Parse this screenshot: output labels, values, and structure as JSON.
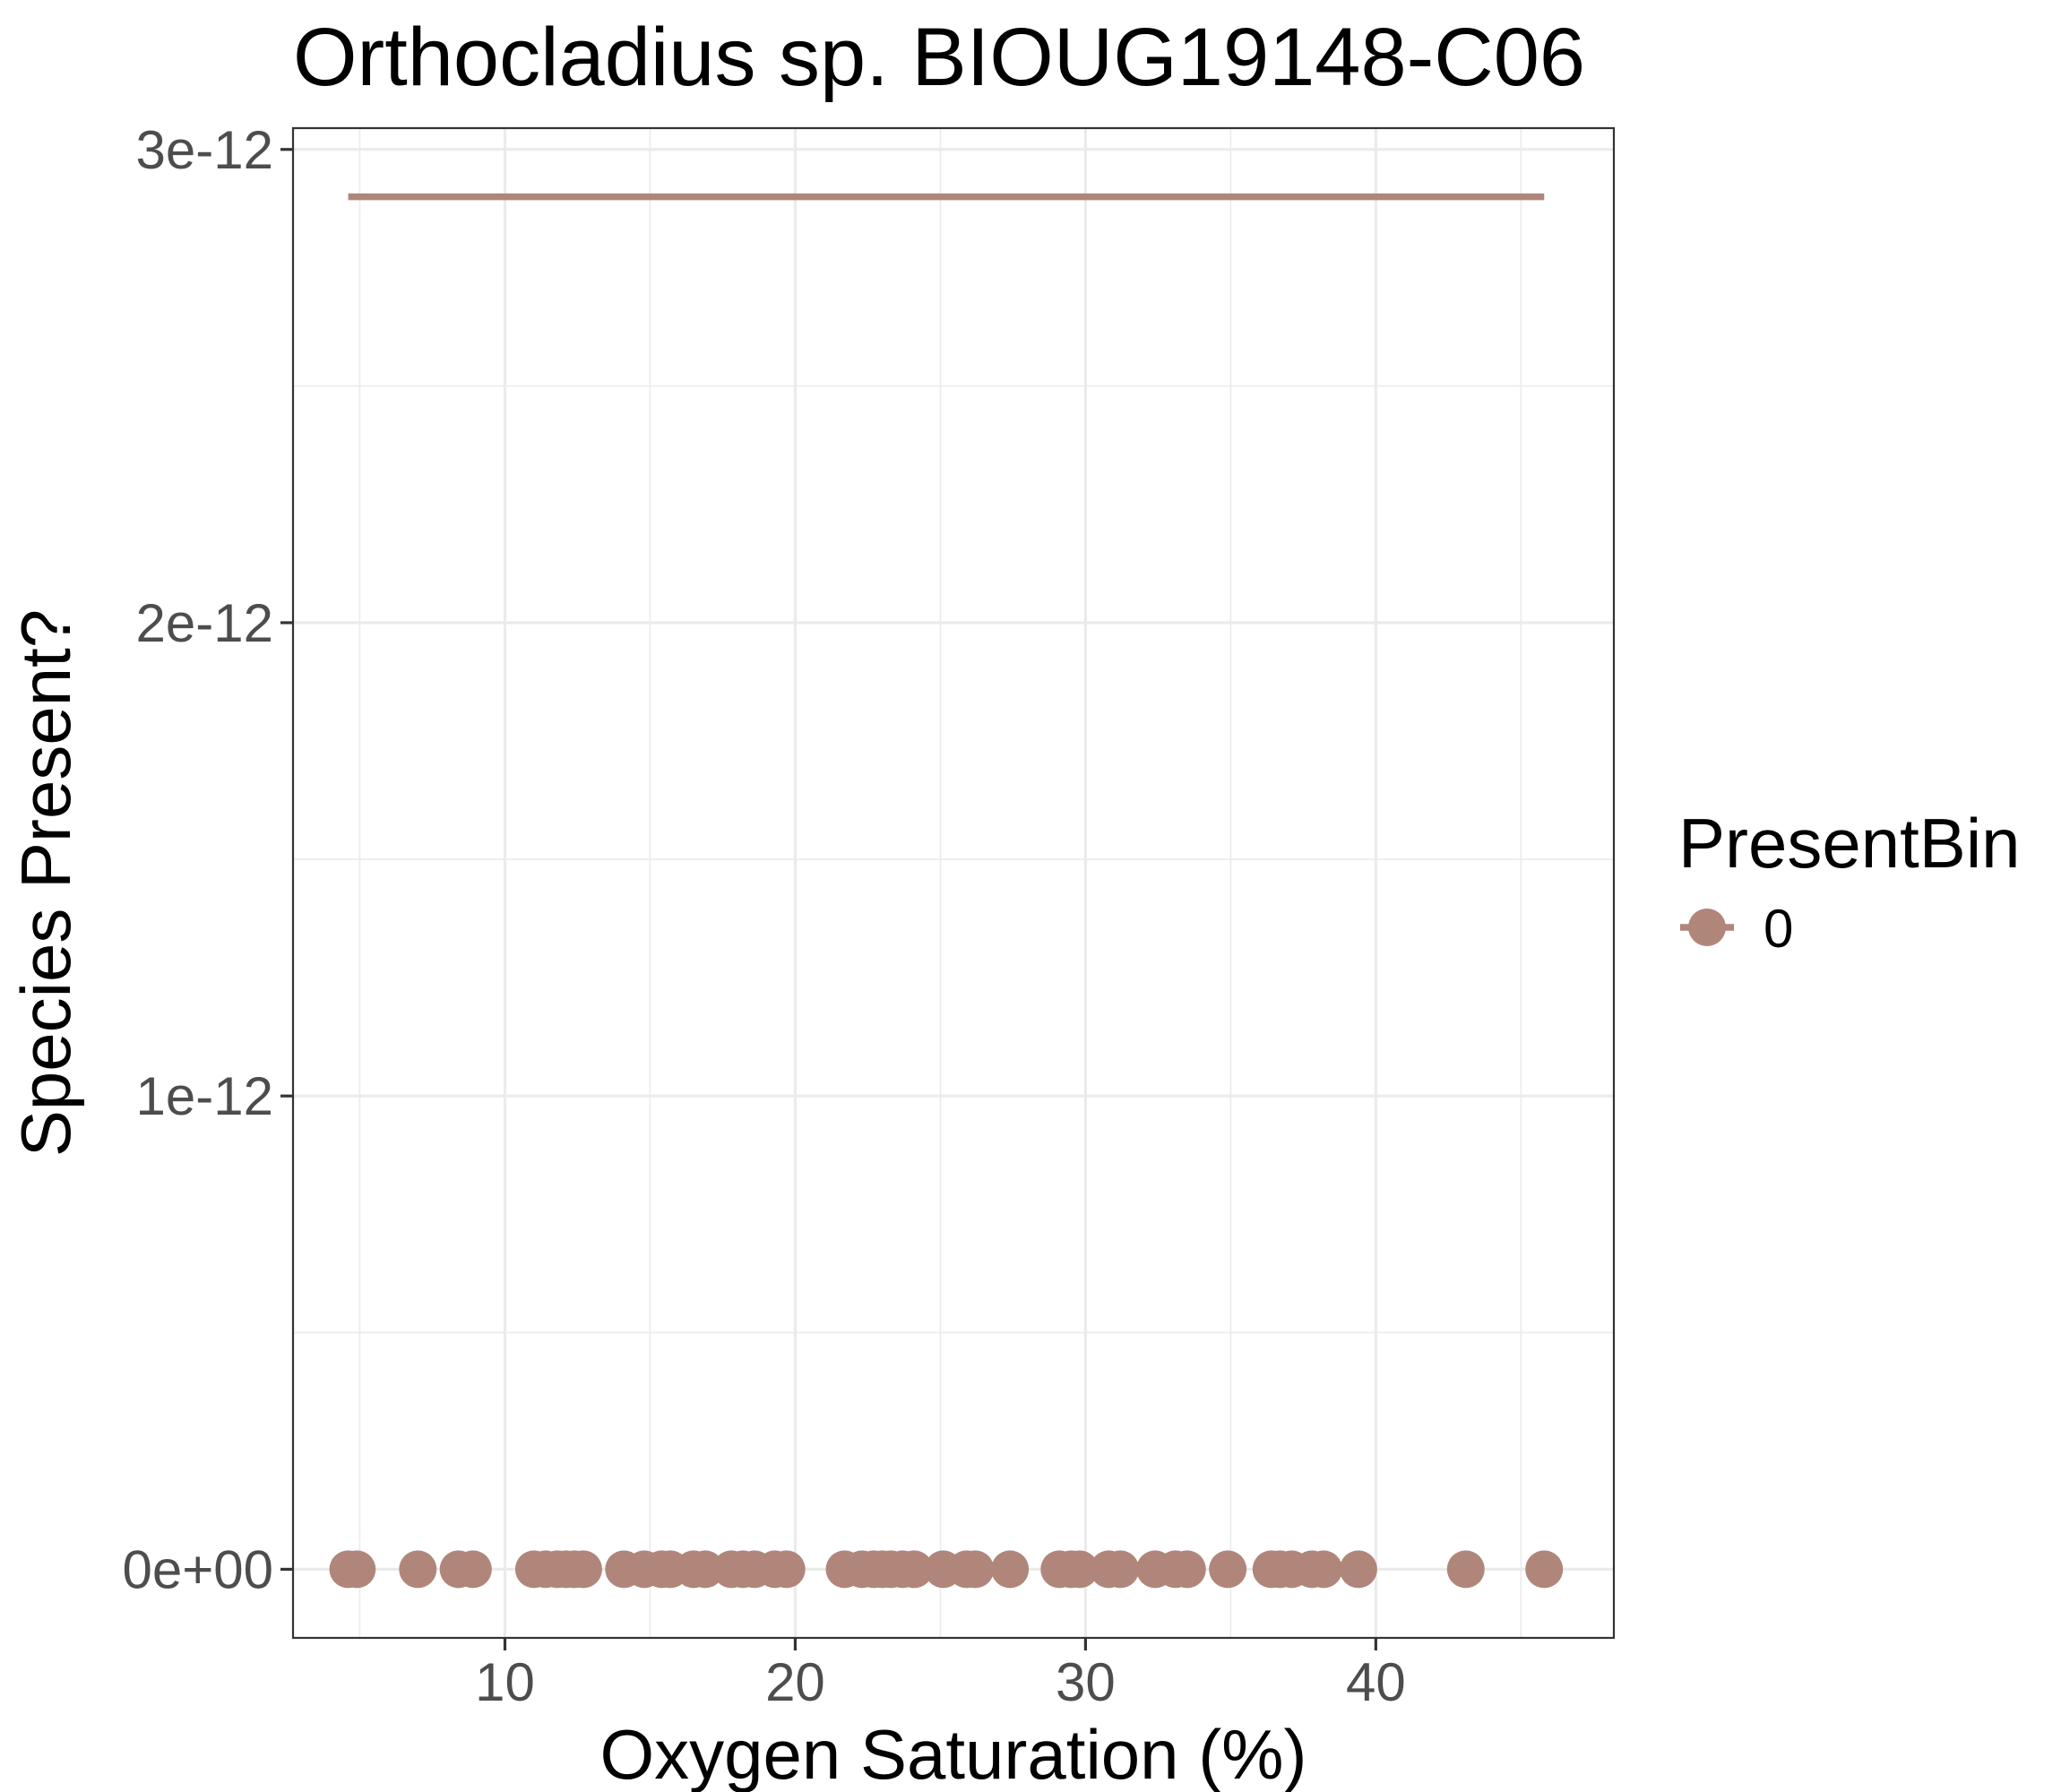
{
  "chart_data": {
    "type": "scatter",
    "title": "Orthocladius sp. BIOUG19148-C06",
    "xlabel": "Oxygen Saturation (%)",
    "ylabel": "Species Present?",
    "xlim": [
      2.7,
      48.2
    ],
    "ylim": [
      -1.45e-13,
      3.045e-12
    ],
    "x_ticks": [
      10,
      20,
      30,
      40
    ],
    "x_tick_labels": [
      "10",
      "20",
      "30",
      "40"
    ],
    "y_ticks": [
      0,
      1e-12,
      2e-12,
      3e-12
    ],
    "y_tick_labels": [
      "0e+00",
      "1e-12",
      "2e-12",
      "3e-12"
    ],
    "grid": true,
    "legend": {
      "title": "PresentBin",
      "placement": "right",
      "entries": [
        "0"
      ]
    },
    "colors": {
      "series_0": "#b0867b"
    },
    "series": [
      {
        "name": "0",
        "points_y": 0,
        "x": [
          4.6,
          4.9,
          7.0,
          8.4,
          8.9,
          11.0,
          11.4,
          11.8,
          12.1,
          12.4,
          12.7,
          14.1,
          14.8,
          15.4,
          15.7,
          16.5,
          16.9,
          17.8,
          18.2,
          18.6,
          19.3,
          19.7,
          21.7,
          22.3,
          22.7,
          23.0,
          23.3,
          23.7,
          24.1,
          25.1,
          25.9,
          26.2,
          27.4,
          29.1,
          29.5,
          29.8,
          30.8,
          31.2,
          32.4,
          33.1,
          33.5,
          34.9,
          36.4,
          36.7,
          37.1,
          37.8,
          38.2,
          39.4,
          43.1,
          45.8
        ]
      }
    ],
    "fit_line": {
      "x": [
        4.6,
        45.8
      ],
      "y": [
        2.9e-12,
        2.9e-12
      ]
    }
  }
}
